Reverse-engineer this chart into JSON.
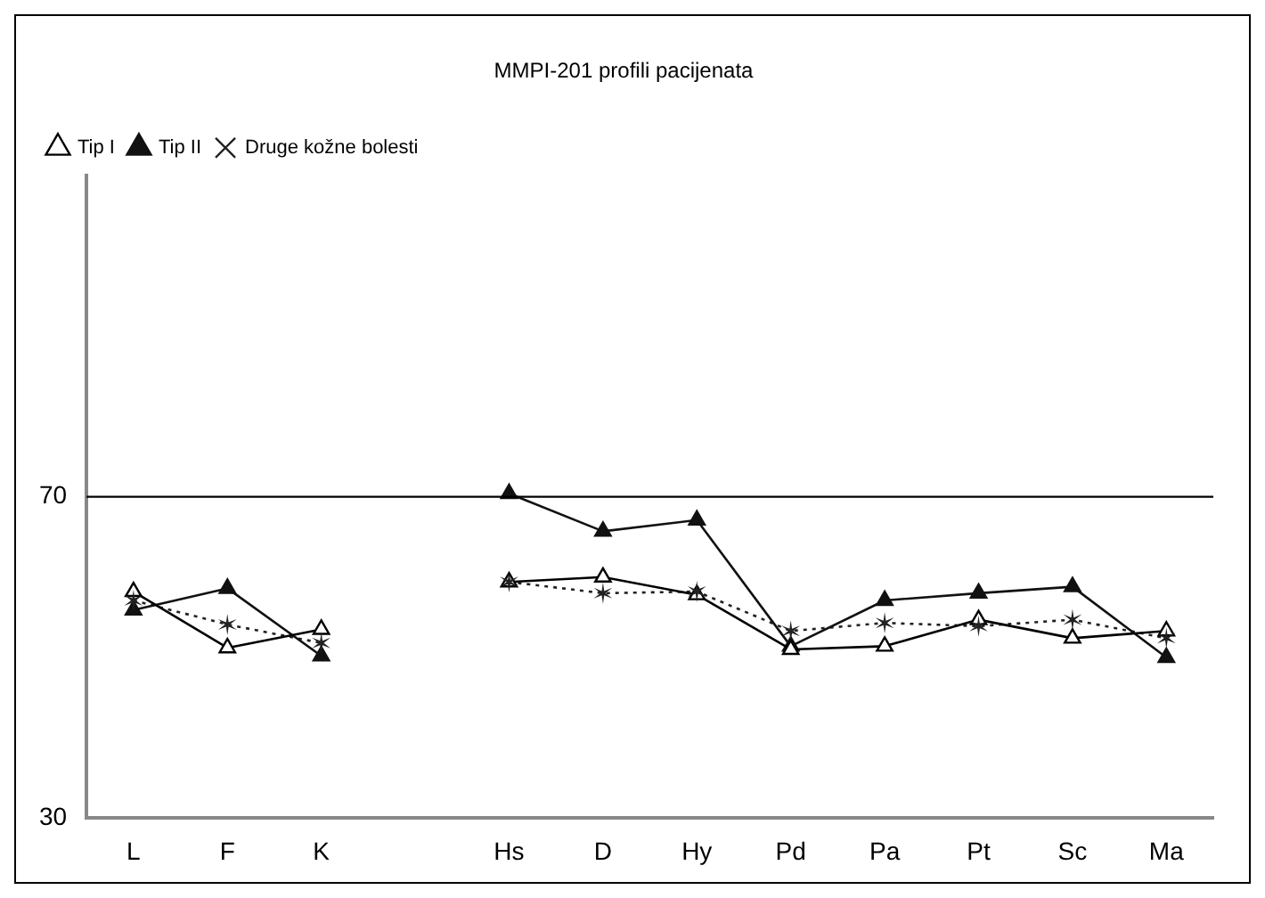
{
  "chart_data": {
    "type": "line",
    "title": "MMPI-201 profili pacijenata",
    "categories": [
      "L",
      "F",
      "K",
      null,
      "Hs",
      "D",
      "Hy",
      "Pd",
      "Pa",
      "Pt",
      "Sc",
      "Ma"
    ],
    "series": [
      {
        "name": "Tip I",
        "color": "#000000",
        "marker": "triangle",
        "line_style": "solid",
        "values": [
          58.2,
          51.2,
          53.5,
          null,
          59.4,
          60,
          57.8,
          51,
          51.4,
          54.7,
          52.4,
          53.3
        ]
      },
      {
        "name": "Tip II",
        "color": "#111111",
        "marker": "triangle",
        "line_style": "solid",
        "values": [
          55.9,
          58.6,
          50.2,
          null,
          70.4,
          65.7,
          67.1,
          51.4,
          57.1,
          58,
          58.8,
          50
        ]
      },
      {
        "name": "Druge kožne bolesti",
        "color": "#222222",
        "marker": "cross",
        "line_style": "dotted",
        "values": [
          57.1,
          54.1,
          51.8,
          null,
          59.4,
          58,
          58.2,
          53.3,
          54.3,
          53.9,
          54.7,
          52.4
        ]
      }
    ],
    "ylim": [
      30,
      110
    ],
    "yticks": [
      30,
      70
    ],
    "grid": false,
    "legend": "top left",
    "ref_lines": [
      {
        "axis": "y",
        "value": 70,
        "color": "#000000"
      }
    ]
  }
}
